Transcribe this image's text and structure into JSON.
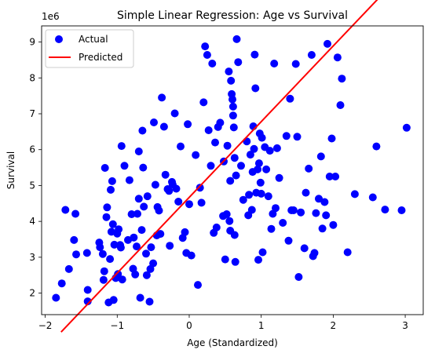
{
  "chart_data": {
    "type": "scatter",
    "title": "Simple Linear Regression: Age vs Survival",
    "xlabel": "Age (Standardized)",
    "ylabel": "Survival",
    "y_scale_label": "1e6",
    "xlim": [
      -2.05,
      3.25
    ],
    "ylim": [
      1.4,
      9.45
    ],
    "x_ticks": [
      -2,
      -1,
      0,
      1,
      2,
      3
    ],
    "y_ticks": [
      2,
      3,
      4,
      5,
      6,
      7,
      8,
      9
    ],
    "grid": false,
    "legend_placement": "top-left",
    "colors": {
      "actual": "#0000ff",
      "predicted": "#ff0000"
    },
    "series": [
      {
        "name": "Actual",
        "kind": "scatter",
        "points": [
          [
            -1.85,
            1.87
          ],
          [
            -1.77,
            2.27
          ],
          [
            -1.72,
            4.32
          ],
          [
            -1.67,
            2.67
          ],
          [
            -1.6,
            3.48
          ],
          [
            -1.58,
            4.21
          ],
          [
            -1.57,
            3.08
          ],
          [
            -1.42,
            3.12
          ],
          [
            -1.41,
            2.09
          ],
          [
            -1.41,
            1.77
          ],
          [
            -1.25,
            3.41
          ],
          [
            -1.24,
            3.28
          ],
          [
            -1.2,
            3.09
          ],
          [
            -1.19,
            2.37
          ],
          [
            -1.18,
            2.61
          ],
          [
            -1.17,
            5.49
          ],
          [
            -1.15,
            4.12
          ],
          [
            -1.14,
            4.39
          ],
          [
            -1.12,
            1.74
          ],
          [
            -1.1,
            2.95
          ],
          [
            -1.09,
            4.88
          ],
          [
            -1.08,
            3.71
          ],
          [
            -1.07,
            5.12
          ],
          [
            -1.06,
            3.92
          ],
          [
            -1.05,
            1.81
          ],
          [
            -1.04,
            3.35
          ],
          [
            -1.02,
            2.42
          ],
          [
            -1.0,
            3.66
          ],
          [
            -0.99,
            2.53
          ],
          [
            -0.98,
            3.78
          ],
          [
            -0.96,
            3.34
          ],
          [
            -0.95,
            3.27
          ],
          [
            -0.94,
            6.1
          ],
          [
            -0.93,
            2.38
          ],
          [
            -0.9,
            5.55
          ],
          [
            -0.85,
            3.48
          ],
          [
            -0.83,
            5.15
          ],
          [
            -0.8,
            4.2
          ],
          [
            -0.78,
            2.68
          ],
          [
            -0.77,
            3.55
          ],
          [
            -0.75,
            2.52
          ],
          [
            -0.73,
            3.3
          ],
          [
            -0.72,
            4.21
          ],
          [
            -0.7,
            5.95
          ],
          [
            -0.7,
            4.63
          ],
          [
            -0.68,
            1.87
          ],
          [
            -0.66,
            3.76
          ],
          [
            -0.65,
            6.53
          ],
          [
            -0.64,
            5.5
          ],
          [
            -0.63,
            4.41
          ],
          [
            -0.6,
            3.1
          ],
          [
            -0.59,
            2.5
          ],
          [
            -0.58,
            4.7
          ],
          [
            -0.55,
            1.76
          ],
          [
            -0.54,
            2.67
          ],
          [
            -0.53,
            3.28
          ],
          [
            -0.5,
            2.83
          ],
          [
            -0.49,
            6.76
          ],
          [
            -0.47,
            5.02
          ],
          [
            -0.45,
            3.61
          ],
          [
            -0.44,
            4.4
          ],
          [
            -0.42,
            4.3
          ],
          [
            -0.4,
            3.65
          ],
          [
            -0.38,
            7.45
          ],
          [
            -0.35,
            6.64
          ],
          [
            -0.33,
            5.3
          ],
          [
            -0.3,
            4.9
          ],
          [
            -0.28,
            4.85
          ],
          [
            -0.27,
            3.32
          ],
          [
            -0.24,
            5.1
          ],
          [
            -0.23,
            5.03
          ],
          [
            -0.2,
            7.01
          ],
          [
            -0.18,
            4.91
          ],
          [
            -0.15,
            4.55
          ],
          [
            -0.12,
            6.09
          ],
          [
            -0.09,
            3.54
          ],
          [
            -0.06,
            3.7
          ],
          [
            -0.04,
            3.12
          ],
          [
            -0.02,
            6.71
          ],
          [
            0.0,
            4.48
          ],
          [
            0.03,
            3.05
          ],
          [
            0.09,
            5.85
          ],
          [
            0.12,
            2.23
          ],
          [
            0.15,
            4.94
          ],
          [
            0.17,
            4.52
          ],
          [
            0.2,
            7.32
          ],
          [
            0.22,
            8.88
          ],
          [
            0.25,
            8.64
          ],
          [
            0.27,
            6.54
          ],
          [
            0.3,
            5.55
          ],
          [
            0.32,
            8.4
          ],
          [
            0.34,
            3.68
          ],
          [
            0.36,
            6.2
          ],
          [
            0.38,
            3.83
          ],
          [
            0.4,
            6.63
          ],
          [
            0.43,
            6.75
          ],
          [
            0.47,
            4.15
          ],
          [
            0.48,
            5.67
          ],
          [
            0.5,
            2.94
          ],
          [
            0.52,
            4.2
          ],
          [
            0.53,
            6.11
          ],
          [
            0.55,
            8.18
          ],
          [
            0.56,
            4.01
          ],
          [
            0.57,
            3.74
          ],
          [
            0.57,
            5.13
          ],
          [
            0.58,
            7.92
          ],
          [
            0.59,
            7.55
          ],
          [
            0.6,
            7.4
          ],
          [
            0.61,
            7.2
          ],
          [
            0.61,
            6.95
          ],
          [
            0.62,
            6.62
          ],
          [
            0.63,
            5.77
          ],
          [
            0.63,
            3.62
          ],
          [
            0.64,
            2.87
          ],
          [
            0.65,
            5.28
          ],
          [
            0.66,
            9.08
          ],
          [
            0.68,
            8.44
          ],
          [
            0.72,
            5.55
          ],
          [
            0.75,
            4.6
          ],
          [
            0.8,
            6.23
          ],
          [
            0.82,
            4.17
          ],
          [
            0.83,
            4.74
          ],
          [
            0.85,
            5.86
          ],
          [
            0.87,
            4.32
          ],
          [
            0.88,
            5.38
          ],
          [
            0.89,
            6.65
          ],
          [
            0.9,
            6.02
          ],
          [
            0.91,
            8.65
          ],
          [
            0.92,
            7.71
          ],
          [
            0.93,
            4.8
          ],
          [
            0.95,
            5.45
          ],
          [
            0.96,
            2.93
          ],
          [
            0.97,
            5.62
          ],
          [
            0.98,
            6.45
          ],
          [
            0.99,
            5.08
          ],
          [
            1.0,
            4.77
          ],
          [
            1.01,
            6.33
          ],
          [
            1.02,
            3.14
          ],
          [
            1.05,
            6.07
          ],
          [
            1.07,
            5.45
          ],
          [
            1.1,
            4.7
          ],
          [
            1.12,
            5.97
          ],
          [
            1.14,
            3.79
          ],
          [
            1.16,
            4.21
          ],
          [
            1.18,
            8.4
          ],
          [
            1.2,
            4.37
          ],
          [
            1.22,
            6.04
          ],
          [
            1.25,
            5.21
          ],
          [
            1.3,
            3.96
          ],
          [
            1.35,
            6.38
          ],
          [
            1.38,
            3.46
          ],
          [
            1.4,
            7.42
          ],
          [
            1.42,
            4.31
          ],
          [
            1.45,
            4.31
          ],
          [
            1.48,
            8.39
          ],
          [
            1.5,
            6.36
          ],
          [
            1.52,
            2.45
          ],
          [
            1.55,
            4.25
          ],
          [
            1.6,
            3.25
          ],
          [
            1.62,
            4.8
          ],
          [
            1.66,
            5.47
          ],
          [
            1.7,
            8.64
          ],
          [
            1.72,
            3.03
          ],
          [
            1.74,
            3.12
          ],
          [
            1.76,
            4.23
          ],
          [
            1.8,
            4.63
          ],
          [
            1.83,
            5.81
          ],
          [
            1.85,
            3.8
          ],
          [
            1.88,
            4.54
          ],
          [
            1.9,
            4.17
          ],
          [
            1.92,
            8.95
          ],
          [
            1.95,
            5.25
          ],
          [
            1.98,
            6.31
          ],
          [
            2.0,
            3.9
          ],
          [
            2.03,
            5.25
          ],
          [
            2.06,
            8.57
          ],
          [
            2.1,
            7.24
          ],
          [
            2.12,
            7.98
          ],
          [
            2.2,
            3.14
          ],
          [
            2.3,
            4.76
          ],
          [
            2.55,
            4.67
          ],
          [
            2.6,
            6.09
          ],
          [
            2.72,
            4.33
          ],
          [
            2.95,
            4.31
          ],
          [
            3.02,
            6.61
          ]
        ]
      },
      {
        "name": "Predicted",
        "kind": "line",
        "slope": 2.11,
        "intercept": 4.67,
        "x_range": [
          -1.78,
          3.02
        ]
      }
    ]
  }
}
